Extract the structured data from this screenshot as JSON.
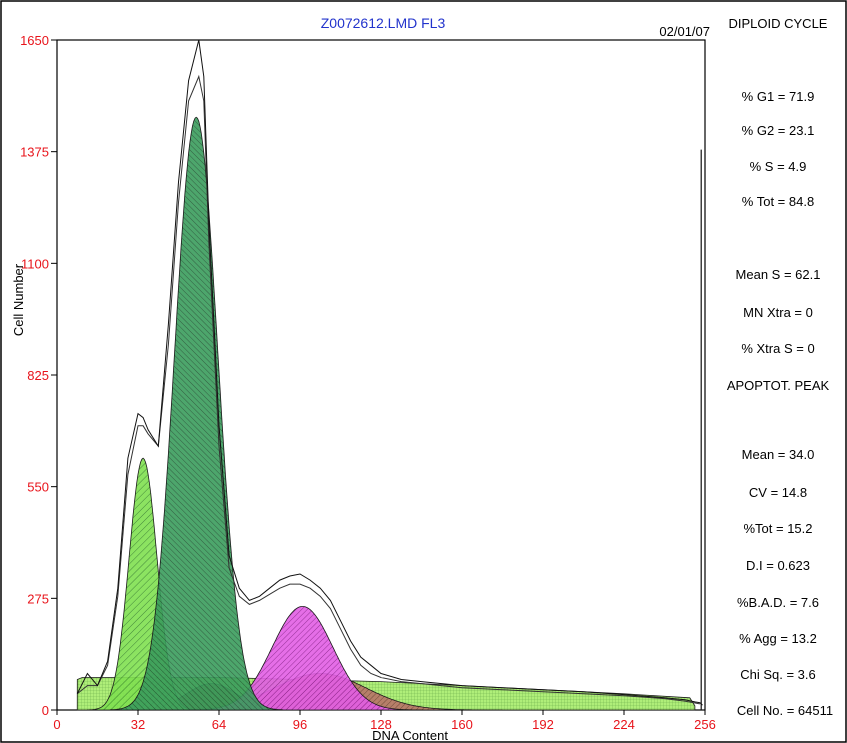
{
  "chart_data": {
    "type": "area",
    "title": "Z0072612.LMD FL3",
    "date": "02/01/07",
    "xlabel": "DNA Content",
    "ylabel": "Cell Number",
    "xlim": [
      0,
      256
    ],
    "ylim": [
      0,
      1650
    ],
    "x_ticks": [
      "0",
      "32",
      "64",
      "96",
      "128",
      "160",
      "192",
      "224",
      "256"
    ],
    "y_ticks": [
      "0",
      "275",
      "550",
      "825",
      "1100",
      "1375",
      "1650"
    ],
    "grid": false,
    "histogram": {
      "x": [
        8,
        12,
        16,
        20,
        24,
        28,
        32,
        34,
        36,
        40,
        44,
        48,
        52,
        56,
        58,
        60,
        64,
        68,
        72,
        76,
        80,
        84,
        88,
        92,
        96,
        100,
        104,
        108,
        112,
        116,
        120,
        124,
        128,
        136,
        144,
        160,
        176,
        192,
        208,
        224,
        240,
        248,
        252,
        254,
        255
      ],
      "y": [
        40,
        90,
        60,
        120,
        300,
        620,
        730,
        720,
        690,
        650,
        950,
        1300,
        1550,
        1650,
        1560,
        1200,
        700,
        380,
        300,
        270,
        280,
        300,
        320,
        330,
        335,
        320,
        300,
        270,
        220,
        170,
        130,
        110,
        90,
        75,
        70,
        60,
        55,
        50,
        45,
        38,
        30,
        25,
        20,
        18,
        12
      ]
    },
    "fit": {
      "x": [
        8,
        12,
        16,
        20,
        24,
        28,
        32,
        34,
        36,
        40,
        44,
        48,
        52,
        56,
        58,
        60,
        64,
        68,
        72,
        76,
        80,
        84,
        88,
        92,
        96,
        100,
        104,
        108,
        112,
        116,
        120,
        124,
        128,
        136,
        144,
        160,
        176,
        192,
        208,
        224,
        240,
        248,
        254
      ],
      "y": [
        40,
        60,
        60,
        110,
        280,
        580,
        700,
        700,
        680,
        650,
        900,
        1250,
        1500,
        1560,
        1500,
        1150,
        650,
        350,
        280,
        260,
        270,
        285,
        300,
        310,
        310,
        300,
        280,
        250,
        200,
        150,
        110,
        90,
        80,
        70,
        65,
        55,
        50,
        45,
        40,
        35,
        28,
        22,
        15
      ]
    },
    "series": [
      {
        "name": "",
        "type": "gaussian",
        "mean": 34,
        "sd": 5.5,
        "amplitude": 620,
        "color": "#63d63a"
      },
      {
        "name": "",
        "type": "gaussian",
        "mean": 55,
        "sd": 8.5,
        "amplitude": 1460,
        "color": "#2f8f4e"
      },
      {
        "name": "",
        "type": "gaussian",
        "mean": 97,
        "sd": 12,
        "amplitude": 255,
        "color": "#d22fd6"
      },
      {
        "name": "",
        "type": "gaussian",
        "mean": 104,
        "sd": 18,
        "amplitude": 90,
        "color": "#a35b4f"
      },
      {
        "name": "",
        "type": "gaussian",
        "mean": 61,
        "sd": 10,
        "amplitude": 65,
        "color": "#6a5a2a"
      },
      {
        "name": "",
        "type": "debris",
        "x": [
          8,
          10,
          16,
          24,
          40,
          64,
          96,
          128,
          160,
          192,
          224,
          250,
          252
        ],
        "y": [
          75,
          80,
          80,
          80,
          80,
          80,
          75,
          70,
          60,
          50,
          40,
          30,
          10
        ],
        "color": "#9ee84f"
      }
    ],
    "stats": {
      "title": "DIPLOID CYCLE",
      "lines": [
        "% G1 = 71.9",
        "% G2 = 23.1",
        "% S = 4.9",
        "% Tot = 84.8",
        "Mean S = 62.1",
        "MN Xtra = 0",
        "% Xtra S = 0"
      ],
      "apoptot_title": "APOPTOT. PEAK",
      "apoptot_lines": [
        "Mean = 34.0",
        "CV = 14.8",
        "%Tot = 15.2",
        "D.I  = 0.623",
        "%B.A.D. = 7.6",
        "% Agg = 13.2",
        "Chi Sq. = 3.6",
        "Cell No. = 64511"
      ]
    }
  },
  "colors": {
    "title": "#2233cc",
    "ticks": "#e8141b",
    "axis": "#000000"
  }
}
